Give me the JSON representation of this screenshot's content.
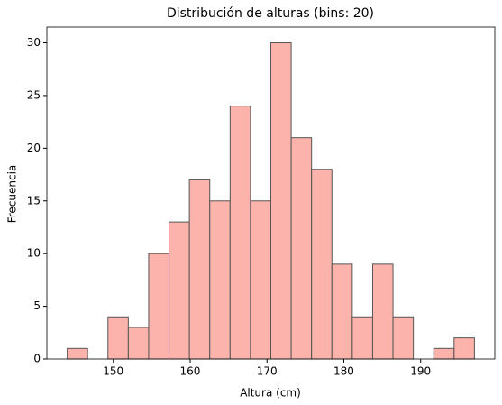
{
  "chart_data": {
    "type": "histogram",
    "title": "Distribución de alturas (bins: 20)",
    "x_label": "Altura (cm)",
    "y_label": "Frecuencia",
    "bins": [
      144,
      146.65,
      149.3,
      151.95,
      154.6,
      157.25,
      159.9,
      162.55,
      165.2,
      167.85,
      170.5,
      173.15,
      175.8,
      178.45,
      181.1,
      183.75,
      186.4,
      189.05,
      191.7,
      194.35,
      197.0
    ],
    "values": [
      1,
      0,
      4,
      3,
      10,
      13,
      17,
      15,
      24,
      15,
      30,
      21,
      18,
      9,
      4,
      9,
      4,
      0,
      1,
      2
    ],
    "color": "#fcb3ab",
    "edgecolor": "#555555",
    "xlim": [
      141.35,
      199.65
    ],
    "xticks": [
      150,
      160,
      170,
      180,
      190
    ],
    "ylim": [
      0,
      31.5
    ],
    "yticks": [
      0,
      5,
      10,
      15,
      20,
      25,
      30
    ]
  }
}
